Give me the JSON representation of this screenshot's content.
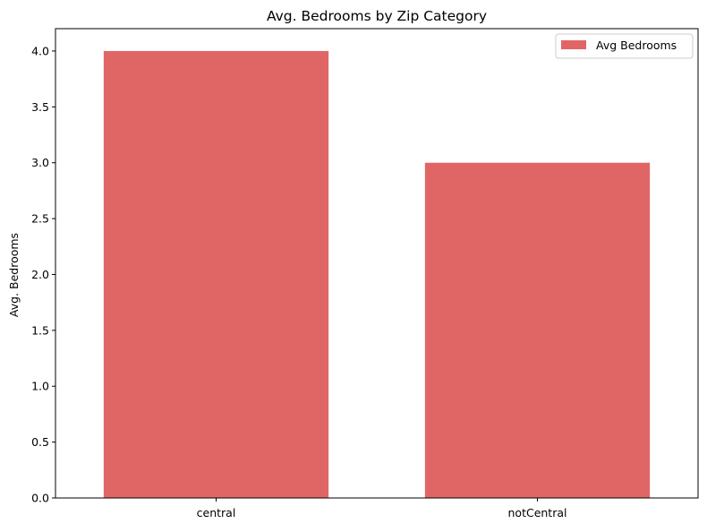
{
  "chart_data": {
    "type": "bar",
    "title": "Avg. Bedrooms by Zip Category",
    "xlabel": "",
    "ylabel": "Avg. Bedrooms",
    "categories": [
      "central",
      "notCentral"
    ],
    "series": [
      {
        "name": "Avg Bedrooms",
        "values": [
          4.0,
          3.0
        ],
        "color": "#e06666"
      }
    ],
    "ylim": [
      0,
      4.2
    ],
    "yticks": [
      "0.0",
      "0.5",
      "1.0",
      "1.5",
      "2.0",
      "2.5",
      "3.0",
      "3.5",
      "4.0"
    ],
    "grid": false,
    "legend_position": "top-right"
  }
}
